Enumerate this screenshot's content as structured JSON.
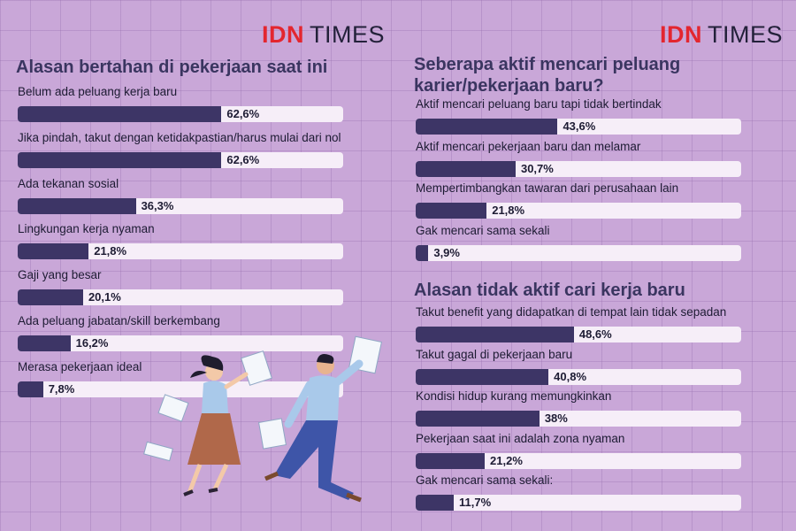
{
  "brand": {
    "part1": "IDN",
    "part2": "TIMES"
  },
  "colors": {
    "background": "#c9a7d8",
    "bar_fill": "#3d3566",
    "bar_track": "#f6eef8",
    "title": "#3a3560",
    "logo_red": "#e3262f"
  },
  "chart_data": [
    {
      "type": "bar",
      "orientation": "horizontal",
      "title": "Alasan bertahan di pekerjaan saat ini",
      "categories": [
        "Belum ada peluang kerja baru",
        "Jika pindah, takut dengan ketidakpastian/harus mulai dari nol",
        "Ada tekanan sosial",
        "Lingkungan kerja nyaman",
        "Gaji yang besar",
        "Ada peluang jabatan/skill berkembang",
        "Merasa pekerjaan ideal"
      ],
      "values": [
        62.6,
        62.6,
        36.3,
        21.8,
        20.1,
        16.2,
        7.8
      ],
      "value_labels": [
        "62,6%",
        "62,6%",
        "36,3%",
        "21,8%",
        "20,1%",
        "16,2%",
        "7,8%"
      ],
      "xlim": [
        0,
        100
      ]
    },
    {
      "type": "bar",
      "orientation": "horizontal",
      "title": "Seberapa aktif mencari peluang karier/pekerjaan baru?",
      "categories": [
        "Aktif mencari peluang baru tapi tidak bertindak",
        "Aktif mencari pekerjaan baru dan melamar",
        "Mempertimbangkan tawaran dari perusahaan lain",
        "Gak mencari sama sekali"
      ],
      "values": [
        43.6,
        30.7,
        21.8,
        3.9
      ],
      "value_labels": [
        "43,6%",
        "30,7%",
        "21,8%",
        "3,9%"
      ],
      "xlim": [
        0,
        100
      ]
    },
    {
      "type": "bar",
      "orientation": "horizontal",
      "title": "Alasan tidak aktif cari kerja baru",
      "categories": [
        "Takut benefit yang didapatkan di tempat lain tidak sepadan",
        "Takut gagal di pekerjaan baru",
        "Kondisi hidup kurang memungkinkan",
        "Pekerjaan saat ini adalah zona nyaman",
        "Gak mencari sama sekali:"
      ],
      "values": [
        48.6,
        40.8,
        38,
        21.2,
        11.7
      ],
      "value_labels": [
        "48,6%",
        "40,8%",
        "38%",
        "21,2%",
        "11,7%"
      ],
      "xlim": [
        0,
        100
      ]
    }
  ]
}
